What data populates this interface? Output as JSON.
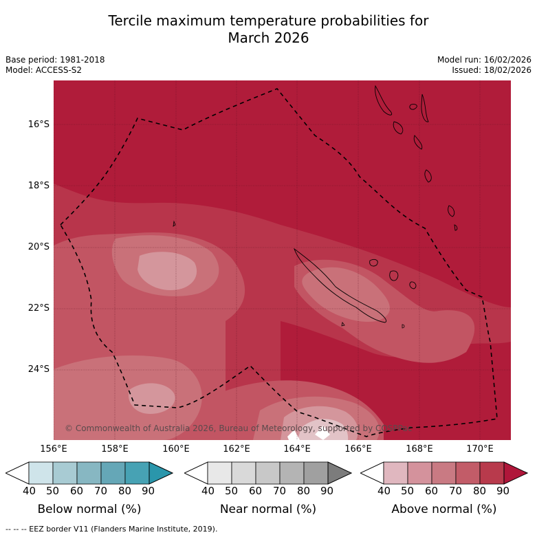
{
  "title_line1": "Tercile maximum temperature probabilities for",
  "title_line2": "March 2026",
  "base_period": "Base period: 1981-2018",
  "model": "Model: ACCESS-S2",
  "model_run": "Model run: 16/02/2026",
  "issued": "Issued: 18/02/2026",
  "copyright": "© Commonwealth of Australia 2026, Bureau of Meteorology, supported by COSPPac",
  "lat_labels": [
    "16°S",
    "18°S",
    "20°S",
    "22°S",
    "24°S"
  ],
  "lon_labels": [
    "156°E",
    "158°E",
    "160°E",
    "162°E",
    "164°E",
    "166°E",
    "168°E",
    "170°E"
  ],
  "colorbars": [
    {
      "title": "Below normal (%)",
      "ticks": [
        "40",
        "50",
        "60",
        "70",
        "80",
        "90"
      ],
      "colors": [
        "#ffffff",
        "#cfe4ea",
        "#a8cbd3",
        "#87b7c2",
        "#65a7b7",
        "#47a2b4",
        "#2a96ab"
      ]
    },
    {
      "title": "Near normal (%)",
      "ticks": [
        "40",
        "50",
        "60",
        "70",
        "80",
        "90"
      ],
      "colors": [
        "#ffffff",
        "#e8e8e8",
        "#d9d9d9",
        "#c8c8c8",
        "#b4b4b4",
        "#a0a0a0",
        "#7c7c7c"
      ]
    },
    {
      "title": "Above normal (%)",
      "ticks": [
        "40",
        "50",
        "60",
        "70",
        "80",
        "90"
      ],
      "colors": [
        "#ffffff",
        "#e0b7bf",
        "#d4929c",
        "#c97a83",
        "#c25c68",
        "#b83a4c",
        "#b0163a"
      ]
    }
  ],
  "footer": "--  --  -- EEZ border V11 (Flanders Marine Institute, 2019).",
  "colors": {
    "above_90": "#b01c3a",
    "above_80": "#b8354b",
    "above_70": "#c25563",
    "above_60": "#c97179",
    "above_50": "#d4969c",
    "above_40": "#e2c3c7"
  }
}
